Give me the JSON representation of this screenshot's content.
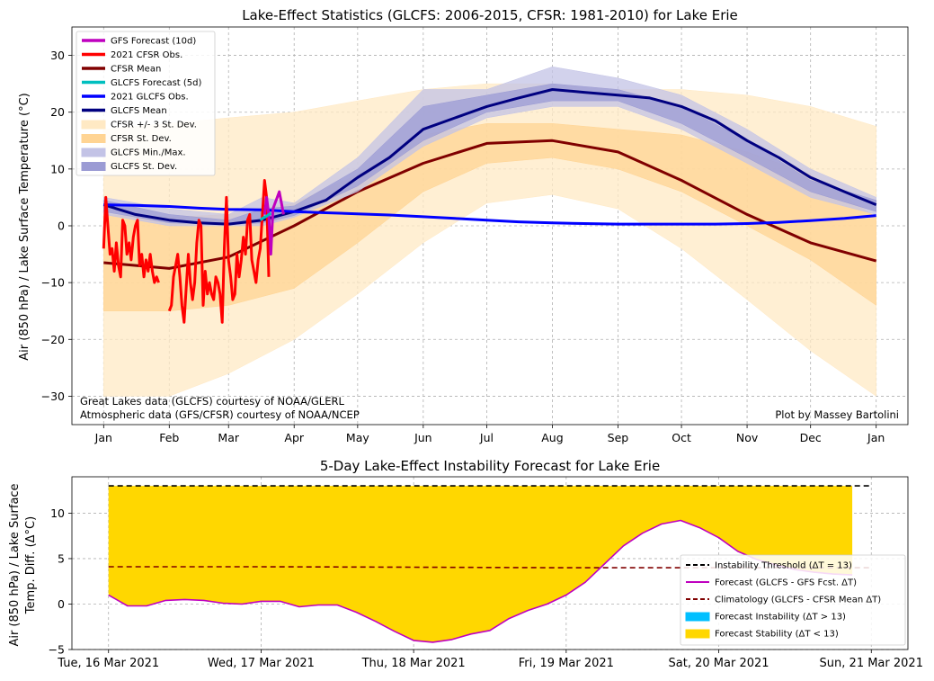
{
  "chart_data": [
    {
      "type": "line",
      "title": "Lake-Effect Statistics (GLCFS: 2006-2015, CFSR: 1981-2010) for Lake Erie",
      "xlabel": "",
      "ylabel": "Air (850 hPa) / Lake Surface Temperature (°C)",
      "ylim": [
        -35,
        35
      ],
      "x_unit": "day of year",
      "xlim": [
        -15,
        380
      ],
      "x_ticks": [
        {
          "x": 0,
          "label": "Jan"
        },
        {
          "x": 31,
          "label": "Feb"
        },
        {
          "x": 59,
          "label": "Mar"
        },
        {
          "x": 90,
          "label": "Apr"
        },
        {
          "x": 120,
          "label": "May"
        },
        {
          "x": 151,
          "label": "Jun"
        },
        {
          "x": 181,
          "label": "Jul"
        },
        {
          "x": 212,
          "label": "Aug"
        },
        {
          "x": 243,
          "label": "Sep"
        },
        {
          "x": 273,
          "label": "Oct"
        },
        {
          "x": 304,
          "label": "Nov"
        },
        {
          "x": 334,
          "label": "Dec"
        },
        {
          "x": 365,
          "label": "Jan"
        }
      ],
      "y_ticks": [
        {
          "y": -30,
          "label": "−30"
        },
        {
          "y": -20,
          "label": "−20"
        },
        {
          "y": -10,
          "label": "−10"
        },
        {
          "y": 0,
          "label": "0"
        },
        {
          "y": 10,
          "label": "10"
        },
        {
          "y": 20,
          "label": "20"
        },
        {
          "y": 30,
          "label": "30"
        }
      ],
      "grid": true,
      "legend_position": "top-left",
      "legend": [
        {
          "label": "GFS Forecast (10d)",
          "kind": "line",
          "color": "#bf00bf"
        },
        {
          "label": "2021 CFSR Obs.",
          "kind": "line",
          "color": "#ff0000"
        },
        {
          "label": "CFSR Mean",
          "kind": "line",
          "color": "#800000"
        },
        {
          "label": "GLCFS Forecast (5d)",
          "kind": "line",
          "color": "#00bfbf"
        },
        {
          "label": "2021 GLCFS Obs.",
          "kind": "line",
          "color": "#0000ff"
        },
        {
          "label": "GLCFS Mean",
          "kind": "line",
          "color": "#000080"
        },
        {
          "label": "CFSR +/- 3 St. Dev.",
          "kind": "patch",
          "color": "#ffe9c4"
        },
        {
          "label": "CFSR St. Dev.",
          "kind": "patch",
          "color": "#ffd493"
        },
        {
          "label": "GLCFS Min./Max.",
          "kind": "patch",
          "color": "#c3c3e6"
        },
        {
          "label": "GLCFS St. Dev.",
          "kind": "patch",
          "color": "#9b9bd4"
        }
      ],
      "series": [
        {
          "name": "CFSR +/- 3 St. Dev.",
          "kind": "band",
          "color": "#ffe9c4",
          "x": [
            0,
            31,
            59,
            90,
            120,
            151,
            181,
            212,
            243,
            273,
            304,
            334,
            365
          ],
          "lower": [
            -30,
            -30,
            -26,
            -20,
            -12,
            -3,
            4,
            5.5,
            3,
            -4,
            -13,
            -22,
            -30
          ],
          "upper": [
            17,
            18,
            19,
            20,
            22,
            24,
            25,
            25,
            24,
            24,
            23,
            21,
            17.5
          ]
        },
        {
          "name": "CFSR St. Dev.",
          "kind": "band",
          "color": "#ffd493",
          "x": [
            0,
            31,
            59,
            90,
            120,
            151,
            181,
            212,
            243,
            273,
            304,
            334,
            365
          ],
          "lower": [
            -15,
            -15,
            -14,
            -11,
            -3,
            6,
            11,
            12,
            10,
            6,
            0,
            -6,
            -14
          ],
          "upper": [
            2,
            1.5,
            2,
            4,
            9,
            16,
            18,
            18,
            17,
            16,
            13,
            9,
            1.5
          ]
        },
        {
          "name": "CFSR Mean",
          "kind": "line",
          "color": "#800000",
          "x": [
            0,
            31,
            59,
            90,
            120,
            151,
            181,
            212,
            243,
            273,
            304,
            334,
            365
          ],
          "values": [
            -6.5,
            -7.5,
            -5.5,
            0,
            6,
            11,
            14.5,
            15,
            13,
            8,
            2,
            -3,
            -6.2
          ]
        },
        {
          "name": "GLCFS Min./Max.",
          "kind": "band",
          "color": "#c3c3e6",
          "x": [
            0,
            31,
            59,
            75,
            90,
            120,
            151,
            181,
            212,
            243,
            273,
            304,
            334,
            365
          ],
          "lower": [
            2,
            0,
            0,
            0,
            1.5,
            6,
            14,
            19,
            21,
            21,
            17,
            11,
            5,
            2
          ],
          "upper": [
            5,
            3,
            2,
            5,
            4,
            12,
            24,
            24,
            28,
            26,
            23,
            17,
            10,
            5
          ]
        },
        {
          "name": "GLCFS St. Dev.",
          "kind": "band",
          "color": "#9b9bd4",
          "x": [
            0,
            31,
            59,
            75,
            90,
            120,
            151,
            181,
            212,
            243,
            273,
            304,
            334,
            365
          ],
          "lower": [
            2.5,
            0.5,
            0.2,
            0.5,
            1.8,
            7,
            15,
            20,
            22,
            22,
            18,
            12,
            6,
            2.5
          ],
          "upper": [
            4.5,
            2,
            1,
            3,
            3.5,
            10,
            21,
            23,
            25,
            24,
            21,
            15,
            8,
            4.5
          ]
        },
        {
          "name": "GLCFS Mean",
          "kind": "line",
          "color": "#000080",
          "x": [
            0,
            15,
            31,
            45,
            59,
            75,
            90,
            105,
            120,
            135,
            151,
            166,
            181,
            196,
            212,
            227,
            243,
            258,
            273,
            289,
            304,
            319,
            334,
            350,
            365
          ],
          "values": [
            3.7,
            2,
            1,
            0.5,
            0.3,
            1,
            2.5,
            4.5,
            8.5,
            12,
            17,
            19,
            21,
            22.5,
            24,
            23.5,
            23,
            22.5,
            21,
            18.5,
            15,
            12,
            8.5,
            6,
            3.7
          ]
        },
        {
          "name": "2021 GLCFS Obs.",
          "kind": "line",
          "color": "#0000ff",
          "x": [
            0,
            15,
            31,
            45,
            59,
            75,
            90,
            105,
            120,
            135,
            151,
            166,
            181,
            196,
            212,
            227,
            243,
            258,
            273,
            289,
            304,
            319,
            334,
            350,
            365
          ],
          "values": [
            3.7,
            3.6,
            3.4,
            3.1,
            2.9,
            2.8,
            2.5,
            2.3,
            2.1,
            1.9,
            1.6,
            1.3,
            1,
            0.7,
            0.5,
            0.4,
            0.3,
            0.3,
            0.3,
            0.3,
            0.4,
            0.6,
            0.9,
            1.3,
            1.8
          ]
        },
        {
          "name": "2021 CFSR Obs.",
          "kind": "line",
          "color": "#ff0000",
          "x": [
            0,
            1,
            2,
            3,
            4,
            5,
            6,
            7,
            8,
            9,
            10,
            11,
            12,
            13,
            14,
            15,
            16,
            17,
            18,
            19,
            20,
            21,
            22,
            23,
            24,
            25,
            26,
            27,
            28,
            29,
            30,
            31,
            32,
            33,
            34,
            35,
            36,
            37,
            38,
            39,
            40,
            41,
            42,
            43,
            44,
            45,
            46,
            47,
            48,
            49,
            50,
            51,
            52,
            53,
            54,
            55,
            56,
            57,
            58,
            59,
            60,
            61,
            62,
            63,
            64,
            65,
            66,
            67,
            68,
            69,
            70,
            71,
            72,
            73,
            74,
            75,
            76,
            77,
            78
          ],
          "values": [
            -4,
            5,
            0,
            -5,
            -4,
            -8,
            -3,
            -7,
            -9,
            1,
            0,
            -5,
            -3,
            -6,
            -2,
            0,
            1,
            -7,
            -5,
            -9,
            -6,
            -8,
            -5,
            -8,
            -10,
            -9,
            -10,
            null,
            null,
            null,
            null,
            -15,
            -14,
            -9,
            -7,
            -5,
            -9,
            -14,
            -17,
            -11,
            -5,
            -10,
            -13,
            -10,
            -3,
            1,
            0,
            -14,
            -8,
            -12,
            -10,
            -12,
            -13,
            -9,
            -10,
            -12,
            -17,
            -4,
            5,
            -6,
            -9,
            -13,
            -12,
            -5,
            -9,
            -6,
            -2,
            -5,
            1,
            2,
            -6,
            -8,
            -10,
            -6,
            -4,
            2,
            8,
            5,
            -9
          ]
        },
        {
          "name": "GFS Forecast (10d)",
          "kind": "line",
          "color": "#bf00bf",
          "x": [
            76,
            77,
            78,
            79,
            80,
            81,
            82,
            83,
            84,
            85
          ],
          "values": [
            2,
            5,
            2,
            -5,
            3,
            4,
            5,
            6,
            4,
            2
          ]
        },
        {
          "name": "GLCFS Forecast (5d)",
          "kind": "line",
          "color": "#00bfbf",
          "x": [
            74,
            75,
            76,
            77,
            78,
            79
          ],
          "values": [
            1,
            1.3,
            1.5,
            1.7,
            2,
            2.2
          ]
        }
      ],
      "annotations": [
        {
          "text": "Great Lakes data (GLCFS) courtesy of NOAA/GLERL",
          "position": "bottom-left"
        },
        {
          "text": "Atmospheric data (GFS/CFSR) courtesy of NOAA/NCEP",
          "position": "bottom-left"
        },
        {
          "text": "Plot by Massey Bartolini",
          "position": "bottom-right"
        }
      ]
    },
    {
      "type": "line",
      "title": "5-Day Lake-Effect Instability Forecast for Lake Erie",
      "xlabel": "",
      "ylabel_lines": [
        "Air (850 hPa) / Lake Surface",
        "Temp. Diff. (Δ°C)"
      ],
      "ylim": [
        -5,
        14
      ],
      "x_unit": "days since Tue, 16 Mar 2021",
      "xlim": [
        -0.24,
        5.24
      ],
      "x_ticks": [
        {
          "x": 0,
          "label": "Tue, 16 Mar 2021"
        },
        {
          "x": 1,
          "label": "Wed, 17 Mar 2021"
        },
        {
          "x": 2,
          "label": "Thu, 18 Mar 2021"
        },
        {
          "x": 3,
          "label": "Fri, 19 Mar 2021"
        },
        {
          "x": 4,
          "label": "Sat, 20 Mar 2021"
        },
        {
          "x": 5,
          "label": "Sun, 21 Mar 2021"
        }
      ],
      "y_ticks": [
        {
          "y": -5,
          "label": "−5"
        },
        {
          "y": 0,
          "label": "0"
        },
        {
          "y": 5,
          "label": "5"
        },
        {
          "y": 10,
          "label": "10"
        }
      ],
      "grid": true,
      "legend_position": "bottom-right",
      "legend": [
        {
          "label": "Instability Threshold (ΔT = 13)",
          "kind": "dashed",
          "color": "#000000"
        },
        {
          "label": "Forecast (GLCFS - GFS Fcst. ΔT)",
          "kind": "line",
          "color": "#bf00bf"
        },
        {
          "label": "Climatology (GLCFS - CFSR Mean ΔT)",
          "kind": "dashed",
          "color": "#800000"
        },
        {
          "label": "Forecast Instability (ΔT > 13)",
          "kind": "patch",
          "color": "#00bfff"
        },
        {
          "label": "Forecast Stability (ΔT < 13)",
          "kind": "patch",
          "color": "#ffd700"
        }
      ],
      "threshold": 13,
      "stability_fill_x": [
        0,
        4.875
      ],
      "series": [
        {
          "name": "Instability Threshold (ΔT = 13)",
          "kind": "hline",
          "color": "#000000",
          "x": [
            0,
            5
          ],
          "values": [
            13,
            13
          ]
        },
        {
          "name": "Climatology (GLCFS - CFSR Mean ΔT)",
          "kind": "dashed",
          "color": "#800000",
          "x": [
            0,
            1,
            2,
            3,
            4,
            5
          ],
          "values": [
            4.1,
            4.1,
            4.05,
            4.0,
            4.0,
            4.0
          ]
        },
        {
          "name": "Forecast (GLCFS - GFS Fcst. ΔT)",
          "kind": "line",
          "color": "#bf00bf",
          "x": [
            0,
            0.125,
            0.25,
            0.375,
            0.5,
            0.625,
            0.75,
            0.875,
            1,
            1.125,
            1.25,
            1.375,
            1.5,
            1.625,
            1.75,
            1.875,
            2,
            2.125,
            2.25,
            2.375,
            2.5,
            2.625,
            2.75,
            2.875,
            3,
            3.125,
            3.25,
            3.375,
            3.5,
            3.625,
            3.75,
            3.875,
            4,
            4.125,
            4.25,
            4.375,
            4.5,
            4.625,
            4.75,
            4.875
          ],
          "values": [
            1.0,
            -0.2,
            -0.2,
            0.4,
            0.5,
            0.4,
            0.1,
            0.0,
            0.3,
            0.3,
            -0.3,
            -0.1,
            -0.1,
            -0.9,
            -1.9,
            -3.0,
            -4.0,
            -4.2,
            -3.9,
            -3.3,
            -2.9,
            -1.6,
            -0.7,
            0.0,
            1.0,
            2.4,
            4.4,
            6.4,
            7.8,
            8.8,
            9.2,
            8.4,
            7.3,
            5.8,
            4.9,
            4.3,
            3.8,
            3.5,
            3.3,
            3.2
          ]
        }
      ]
    }
  ]
}
